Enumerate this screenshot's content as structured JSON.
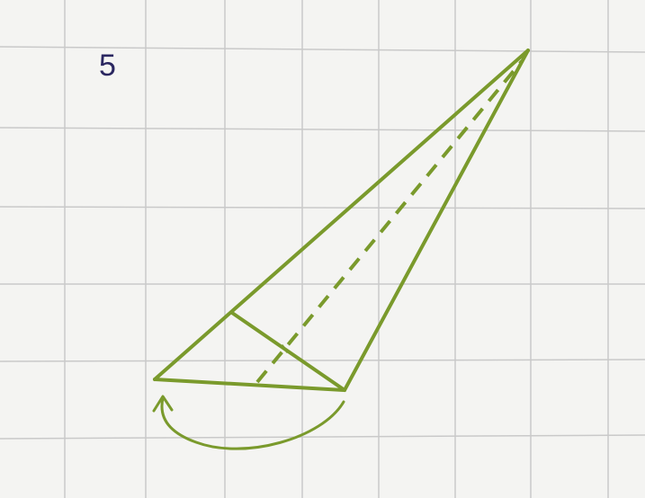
{
  "step_number": "5",
  "colors": {
    "paper": "#f4f4f2",
    "grid": "#c9c9c9",
    "fold_line": "#7a9a2c",
    "step_number": "#2a2660"
  },
  "icons": {
    "fold_arrow": "curved-arrow-icon"
  }
}
